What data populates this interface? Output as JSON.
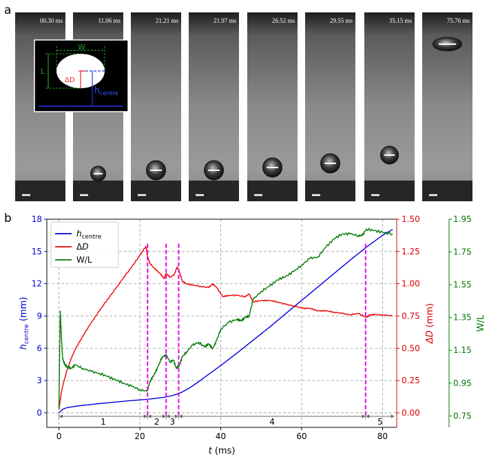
{
  "panel_a": {
    "letter": "a",
    "frames": [
      "00.30 ms",
      "11.06 ms",
      "21.21 ms",
      "21.97 ms",
      "26.52 ms",
      "29.55 ms",
      "35.15 ms",
      "75.76 ms"
    ],
    "inset": {
      "w_label": "W",
      "l_label": "L",
      "dd_label": "ΔD",
      "h_label": "h",
      "h_sub": "centre"
    }
  },
  "chart_data": {
    "type": "line",
    "panel_letter": "b",
    "xlabel": "t",
    "xlabel_unit": "(ms)",
    "xlim": [
      -3,
      83.5
    ],
    "xticks": [
      0,
      20,
      40,
      60,
      80
    ],
    "axes": {
      "left": {
        "label": "h",
        "label_sub": "centre",
        "label_unit": "(mm)",
        "ylim": [
          -1.35,
          18
        ],
        "ticks": [
          0,
          3,
          6,
          9,
          12,
          15,
          18
        ],
        "color": "#0000cc"
      },
      "right1": {
        "label": "ΔD",
        "label_unit": "(mm)",
        "ylim": [
          -0.1125,
          1.5
        ],
        "ticks": [
          0.0,
          0.25,
          0.5,
          0.75,
          1.0,
          1.25,
          1.5
        ],
        "tick_labels": [
          "0.00",
          "0.25",
          "0.50",
          "0.75",
          "1.00",
          "1.25",
          "1.50"
        ],
        "color": "#dd0000"
      },
      "right2": {
        "label": "W/L",
        "ylim": [
          0.68,
          1.95
        ],
        "ticks": [
          0.75,
          0.95,
          1.15,
          1.35,
          1.55,
          1.75,
          1.95
        ],
        "tick_labels": [
          "0.75",
          "0.95",
          "1.15",
          "1.35",
          "1.55",
          "1.75",
          "1.95"
        ],
        "color": "#007700"
      }
    },
    "series": [
      {
        "name": "h",
        "name_sub": "centre",
        "axis": "left",
        "color": "#0000dd",
        "x": [
          0,
          1,
          2,
          4,
          6,
          8,
          10,
          12,
          14,
          16,
          18,
          20,
          21.5,
          24,
          26,
          28,
          30,
          32,
          34,
          36,
          38,
          40,
          44,
          48,
          52,
          56,
          60,
          64,
          68,
          72,
          76,
          80,
          82.5
        ],
        "y": [
          0,
          0.35,
          0.48,
          0.6,
          0.7,
          0.78,
          0.86,
          0.93,
          1.0,
          1.07,
          1.14,
          1.2,
          1.25,
          1.35,
          1.45,
          1.6,
          1.85,
          2.25,
          2.75,
          3.3,
          3.85,
          4.4,
          5.55,
          6.75,
          7.95,
          9.2,
          10.45,
          11.7,
          12.95,
          14.2,
          15.4,
          16.5,
          17.05
        ]
      },
      {
        "name": "ΔD",
        "axis": "right1",
        "color": "#ee0000",
        "x": [
          0,
          0.5,
          1,
          2,
          3,
          4,
          6,
          8,
          10,
          12,
          14,
          16,
          18,
          20,
          21.5,
          21.9,
          22.5,
          23.5,
          25,
          26,
          26.5,
          27.5,
          28.5,
          29.2,
          29.8,
          30.5,
          31.5,
          33,
          35,
          37,
          38,
          39,
          40.5,
          42,
          44,
          46,
          47,
          48,
          50,
          52,
          54,
          56,
          58,
          60,
          62,
          64,
          66,
          68,
          70,
          72,
          74,
          76,
          77,
          78,
          80,
          82.5
        ],
        "y": [
          0.03,
          0.14,
          0.22,
          0.33,
          0.42,
          0.49,
          0.6,
          0.7,
          0.79,
          0.88,
          0.96,
          1.05,
          1.13,
          1.22,
          1.29,
          1.21,
          1.16,
          1.12,
          1.08,
          1.04,
          1.08,
          1.05,
          1.07,
          1.13,
          1.09,
          1.02,
          1.0,
          0.99,
          0.98,
          0.97,
          1.0,
          0.97,
          0.9,
          0.91,
          0.91,
          0.9,
          0.92,
          0.86,
          0.87,
          0.87,
          0.86,
          0.84,
          0.83,
          0.81,
          0.81,
          0.79,
          0.79,
          0.78,
          0.77,
          0.76,
          0.77,
          0.74,
          0.76,
          0.76,
          0.76,
          0.75
        ]
      },
      {
        "name": "W/L",
        "axis": "right2",
        "color": "#007a00",
        "x": [
          0,
          0.3,
          0.6,
          0.9,
          1.2,
          1.5,
          2,
          3,
          4,
          6,
          8,
          10,
          12,
          14,
          16,
          18,
          20,
          21.8,
          22.5,
          23.5,
          24.5,
          25.5,
          26.5,
          27.5,
          28.3,
          29,
          29.8,
          30.5,
          31.5,
          33,
          34.5,
          36,
          37,
          38,
          39,
          40,
          42,
          44,
          45,
          46,
          47,
          48,
          50,
          52,
          54,
          56,
          58,
          60,
          62,
          64,
          66,
          68,
          70,
          72,
          74,
          75,
          76,
          78,
          80,
          82.5
        ],
        "y": [
          0.79,
          1.39,
          1.24,
          1.1,
          1.08,
          1.06,
          1.05,
          1.04,
          1.06,
          1.04,
          1.02,
          1.01,
          0.99,
          0.97,
          0.95,
          0.93,
          0.91,
          0.9,
          0.96,
          1.0,
          1.05,
          1.11,
          1.12,
          1.08,
          1.09,
          1.04,
          1.06,
          1.11,
          1.14,
          1.18,
          1.2,
          1.17,
          1.19,
          1.16,
          1.21,
          1.28,
          1.32,
          1.34,
          1.33,
          1.35,
          1.36,
          1.46,
          1.51,
          1.54,
          1.58,
          1.6,
          1.63,
          1.67,
          1.71,
          1.72,
          1.78,
          1.83,
          1.86,
          1.86,
          1.85,
          1.85,
          1.89,
          1.88,
          1.87,
          1.86
        ]
      }
    ],
    "phase_lines_x": [
      21.9,
      26.5,
      29.6,
      75.8
    ],
    "phases": [
      {
        "label": "1",
        "from": 0,
        "to": 21.9
      },
      {
        "label": "2",
        "from": 21.9,
        "to": 26.5
      },
      {
        "label": "3",
        "from": 26.5,
        "to": 29.6
      },
      {
        "label": "4",
        "from": 29.6,
        "to": 75.8
      },
      {
        "label": "5",
        "from": 75.8,
        "to": 83
      }
    ],
    "grid": true,
    "legend_position": "top-left"
  }
}
